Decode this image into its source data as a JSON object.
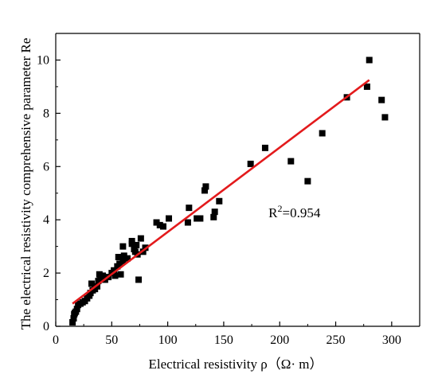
{
  "chart_data": {
    "type": "scatter",
    "title": "",
    "xlabel": "Electrical resistivity ρ（Ω· m）",
    "ylabel": "The electrical resistivity comprehensive parameter Re",
    "xlim": [
      0,
      325
    ],
    "ylim": [
      0,
      11
    ],
    "xticks": [
      0,
      50,
      100,
      150,
      200,
      250,
      300
    ],
    "yticks": [
      0,
      2,
      4,
      6,
      8,
      10
    ],
    "x_tick_labels": [
      "0",
      "50",
      "100",
      "150",
      "200",
      "250",
      "300"
    ],
    "y_tick_labels": [
      "0",
      "2",
      "4",
      "6",
      "8",
      "10"
    ],
    "grid": false,
    "annotation": {
      "base": "R",
      "sup": "2",
      "value": "=0.954",
      "x": 190,
      "y": 4.1
    },
    "colors": {
      "points": "#000000",
      "fit_line": "#e31a1c",
      "axes": "#000000"
    },
    "fit_line": {
      "x": [
        15,
        280
      ],
      "y": [
        0.85,
        9.25
      ]
    },
    "points": [
      [
        15,
        0.15
      ],
      [
        16,
        0.3
      ],
      [
        16.5,
        0.45
      ],
      [
        17,
        0.5
      ],
      [
        18,
        0.55
      ],
      [
        19,
        0.65
      ],
      [
        20,
        0.8
      ],
      [
        22,
        0.85
      ],
      [
        24,
        0.9
      ],
      [
        26,
        0.95
      ],
      [
        28,
        1.05
      ],
      [
        30,
        1.15
      ],
      [
        31,
        1.25
      ],
      [
        33,
        1.35
      ],
      [
        35,
        1.4
      ],
      [
        37,
        1.5
      ],
      [
        32,
        1.6
      ],
      [
        38,
        1.7
      ],
      [
        40,
        1.8
      ],
      [
        42,
        1.9
      ],
      [
        39,
        1.95
      ],
      [
        44,
        1.75
      ],
      [
        47,
        1.85
      ],
      [
        50,
        2.0
      ],
      [
        52,
        2.1
      ],
      [
        53,
        1.9
      ],
      [
        55,
        2.25
      ],
      [
        57,
        2.35
      ],
      [
        56,
        2.6
      ],
      [
        58,
        1.95
      ],
      [
        60,
        2.45
      ],
      [
        61,
        2.65
      ],
      [
        60,
        3.0
      ],
      [
        64,
        2.55
      ],
      [
        68,
        3.1
      ],
      [
        68,
        3.2
      ],
      [
        70,
        2.9
      ],
      [
        72,
        3.05
      ],
      [
        71,
        2.8
      ],
      [
        73,
        2.7
      ],
      [
        74,
        1.75
      ],
      [
        76,
        3.3
      ],
      [
        78,
        2.8
      ],
      [
        80,
        2.95
      ],
      [
        90,
        3.9
      ],
      [
        93,
        3.8
      ],
      [
        96,
        3.75
      ],
      [
        101,
        4.05
      ],
      [
        118,
        3.9
      ],
      [
        119,
        4.45
      ],
      [
        126,
        4.05
      ],
      [
        129,
        4.05
      ],
      [
        133,
        5.1
      ],
      [
        134,
        5.25
      ],
      [
        141,
        4.1
      ],
      [
        142,
        4.3
      ],
      [
        146,
        4.7
      ],
      [
        174,
        6.1
      ],
      [
        187,
        6.7
      ],
      [
        210,
        6.2
      ],
      [
        225,
        5.45
      ],
      [
        238,
        7.25
      ],
      [
        260,
        8.6
      ],
      [
        278,
        9.0
      ],
      [
        280,
        10.0
      ],
      [
        291,
        8.5
      ],
      [
        294,
        7.85
      ]
    ]
  }
}
